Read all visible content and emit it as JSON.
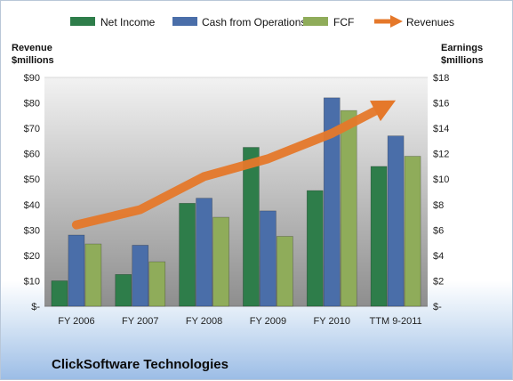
{
  "chart_data": {
    "type": "bar",
    "categories": [
      "FY 2006",
      "FY 2007",
      "FY 2008",
      "FY 2009",
      "FY 2010",
      "TTM 9-2011"
    ],
    "series": [
      {
        "name": "Net Income",
        "axis": "right",
        "color": "#2e7d4a",
        "values": [
          2.0,
          2.5,
          8.1,
          12.5,
          9.1,
          11.0
        ]
      },
      {
        "name": "Cash from Operations",
        "axis": "right",
        "color": "#4a6ea9",
        "values": [
          5.6,
          4.8,
          8.5,
          7.5,
          16.4,
          13.4
        ]
      },
      {
        "name": "FCF",
        "axis": "right",
        "color": "#8fac5a",
        "values": [
          4.9,
          3.5,
          7.0,
          5.5,
          15.4,
          11.8
        ]
      },
      {
        "name": "Revenues",
        "axis": "left",
        "type": "line-arrow",
        "color": "#e5782a",
        "values": [
          32,
          38,
          51,
          58,
          68,
          81
        ]
      }
    ],
    "left_axis": {
      "title_line1": "Revenue",
      "title_line2": "$millions",
      "ylim": [
        0,
        90
      ],
      "ticks": [
        "$-",
        "$10",
        "$20",
        "$30",
        "$40",
        "$50",
        "$60",
        "$70",
        "$80",
        "$90"
      ]
    },
    "right_axis": {
      "title_line1": "Earnings",
      "title_line2": "$millions",
      "ylim": [
        0,
        18
      ],
      "ticks": [
        "$-",
        "$2",
        "$4",
        "$6",
        "$8",
        "$10",
        "$12",
        "$14",
        "$16",
        "$18"
      ]
    },
    "grid": false,
    "legend_position": "top",
    "company": "ClickSoftware Technologies"
  }
}
